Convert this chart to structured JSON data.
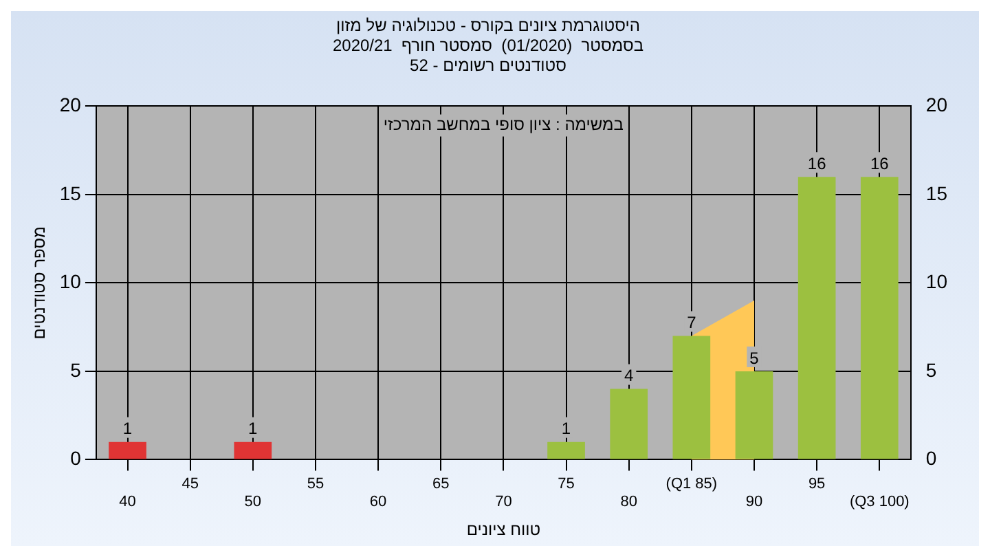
{
  "chart_data": {
    "type": "bar",
    "title": [
      "היסטוגרמת ציונים בקורס - טכנולוגיה של מזון",
      "בסמסטר  (01/2020)  סמסטר חורף  2020/21",
      "סטודנטים רשומים - 52"
    ],
    "xlabel": "טווח ציונים",
    "ylabel": "מספר סטודנטים",
    "annotations": [
      "במשימה : ציון סופי במחשב המרכזי"
    ],
    "categories": [
      "40",
      "45",
      "50",
      "55",
      "60",
      "65",
      "70",
      "75",
      "80",
      "(Q1 85)",
      "90",
      "95",
      "(Q3 100)"
    ],
    "series": [
      {
        "colors": [
          "#e03434",
          "#9cc040",
          "#e03434",
          "#9cc040",
          "#9cc040",
          "#9cc040",
          "#9cc040",
          "#9cc040",
          "#9cc040",
          "#9cc040",
          "#9cc040",
          "#9cc040",
          "#9cc040"
        ],
        "values": [
          1,
          0,
          1,
          0,
          0,
          0,
          0,
          1,
          4,
          7,
          5,
          16,
          16
        ],
        "value_labels": [
          "1",
          null,
          "1",
          null,
          null,
          null,
          null,
          "1",
          "4",
          "7",
          "5",
          "16",
          "16"
        ]
      },
      {
        "type": "area",
        "color": "#ffc857",
        "values": [
          null,
          null,
          null,
          null,
          null,
          null,
          null,
          null,
          null,
          7,
          9,
          null,
          null
        ]
      }
    ],
    "ylim": [
      0,
      20
    ],
    "yticks": [
      0,
      5,
      10,
      15,
      20
    ],
    "y2lim": [
      0,
      20
    ],
    "y2ticks": [
      0,
      5,
      10,
      15,
      20
    ],
    "grid": true,
    "legend": false
  }
}
